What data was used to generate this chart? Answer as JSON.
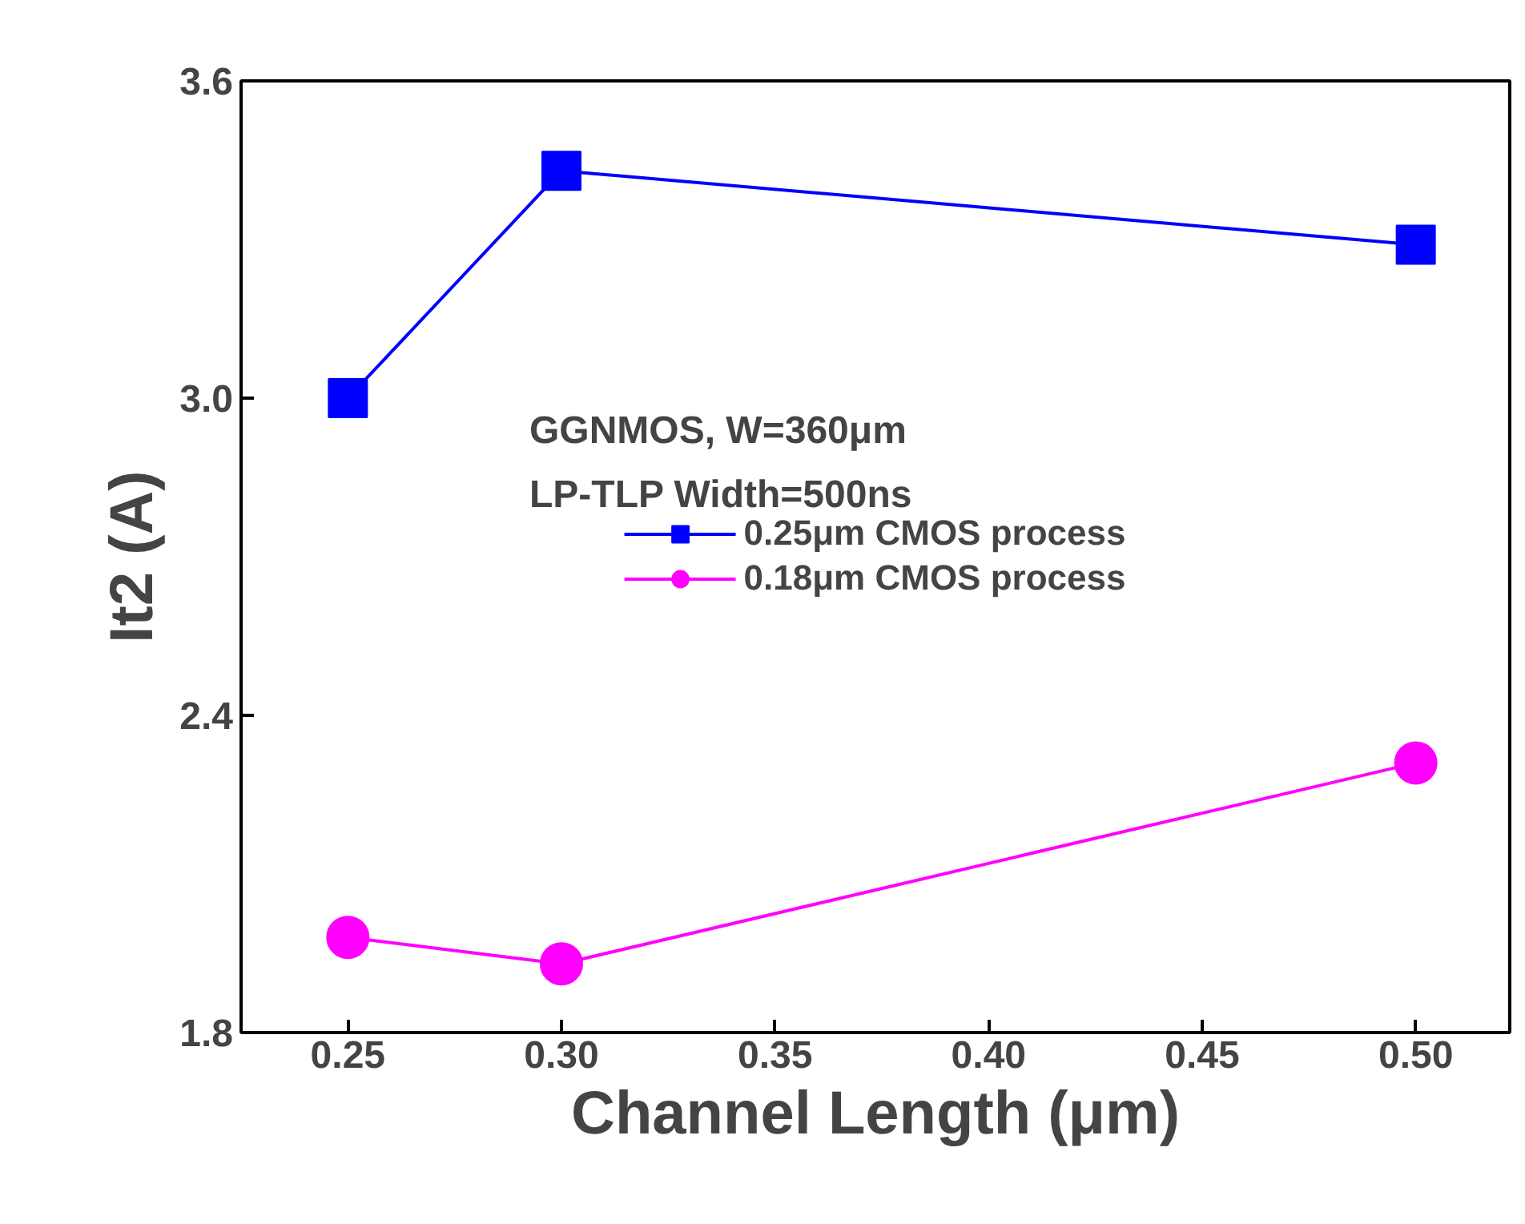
{
  "chart_data": {
    "type": "line",
    "xlabel": "Channel Length (μm)",
    "ylabel": "It2 (A)",
    "annotations": [
      "GGNMOS, W=360μm",
      "LP-TLP Width=500ns"
    ],
    "series": [
      {
        "name": "0.25μm CMOS process",
        "color": "#0000ff",
        "marker": "square",
        "x": [
          0.25,
          0.3,
          0.5
        ],
        "values": [
          3.0,
          3.43,
          3.29
        ]
      },
      {
        "name": "0.18μm CMOS process",
        "color": "#ff00ff",
        "marker": "circle",
        "x": [
          0.25,
          0.3,
          0.5
        ],
        "values": [
          1.98,
          1.93,
          2.31
        ]
      }
    ],
    "xlim": [
      0.225,
      0.522
    ],
    "ylim": [
      1.8,
      3.6
    ],
    "xticks": [
      {
        "value": 0.25,
        "label": "0.25"
      },
      {
        "value": 0.3,
        "label": "0.30"
      },
      {
        "value": 0.35,
        "label": "0.35"
      },
      {
        "value": 0.4,
        "label": "0.40"
      },
      {
        "value": 0.45,
        "label": "0.45"
      },
      {
        "value": 0.5,
        "label": "0.50"
      }
    ],
    "yticks": [
      {
        "value": 1.8,
        "label": "1.8"
      },
      {
        "value": 2.4,
        "label": "2.4"
      },
      {
        "value": 3.0,
        "label": "3.0"
      },
      {
        "value": 3.6,
        "label": "3.6"
      }
    ],
    "grid": false,
    "legend": "center",
    "line_style": "solid"
  }
}
